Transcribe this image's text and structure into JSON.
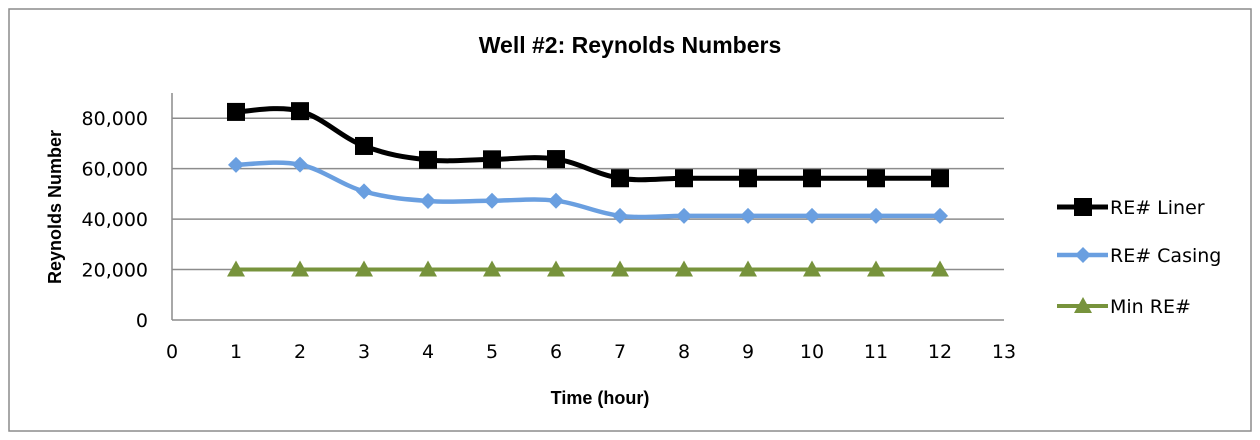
{
  "chart_data": {
    "type": "line",
    "title": "Well #2: Reynolds Numbers",
    "xlabel": "Time (hour)",
    "ylabel": "Reynolds Number",
    "xlim": [
      0,
      13
    ],
    "ylim": [
      0,
      90000
    ],
    "x_ticks": [
      "0",
      "1",
      "2",
      "3",
      "4",
      "5",
      "6",
      "7",
      "8",
      "9",
      "10",
      "11",
      "12",
      "13"
    ],
    "y_ticks": [
      "0",
      "20,000",
      "40,000",
      "60,000",
      "80,000"
    ],
    "grid": "horizontal",
    "legend_position": "right",
    "x": [
      1,
      2,
      3,
      4,
      5,
      6,
      7,
      8,
      9,
      10,
      11,
      12
    ],
    "series": [
      {
        "name": "RE# Liner",
        "color": "#000000",
        "marker": "square",
        "values": [
          82500,
          82800,
          69000,
          63500,
          63700,
          63800,
          56200,
          56200,
          56200,
          56200,
          56200,
          56200
        ]
      },
      {
        "name": "RE# Casing",
        "color": "#6a9fe0",
        "marker": "diamond",
        "values": [
          61500,
          61600,
          51000,
          47200,
          47300,
          47300,
          41300,
          41300,
          41300,
          41300,
          41300,
          41300
        ]
      },
      {
        "name": "Min RE#",
        "color": "#77933c",
        "marker": "triangle",
        "values": [
          20000,
          20000,
          20000,
          20000,
          20000,
          20000,
          20000,
          20000,
          20000,
          20000,
          20000,
          20000
        ]
      }
    ]
  }
}
